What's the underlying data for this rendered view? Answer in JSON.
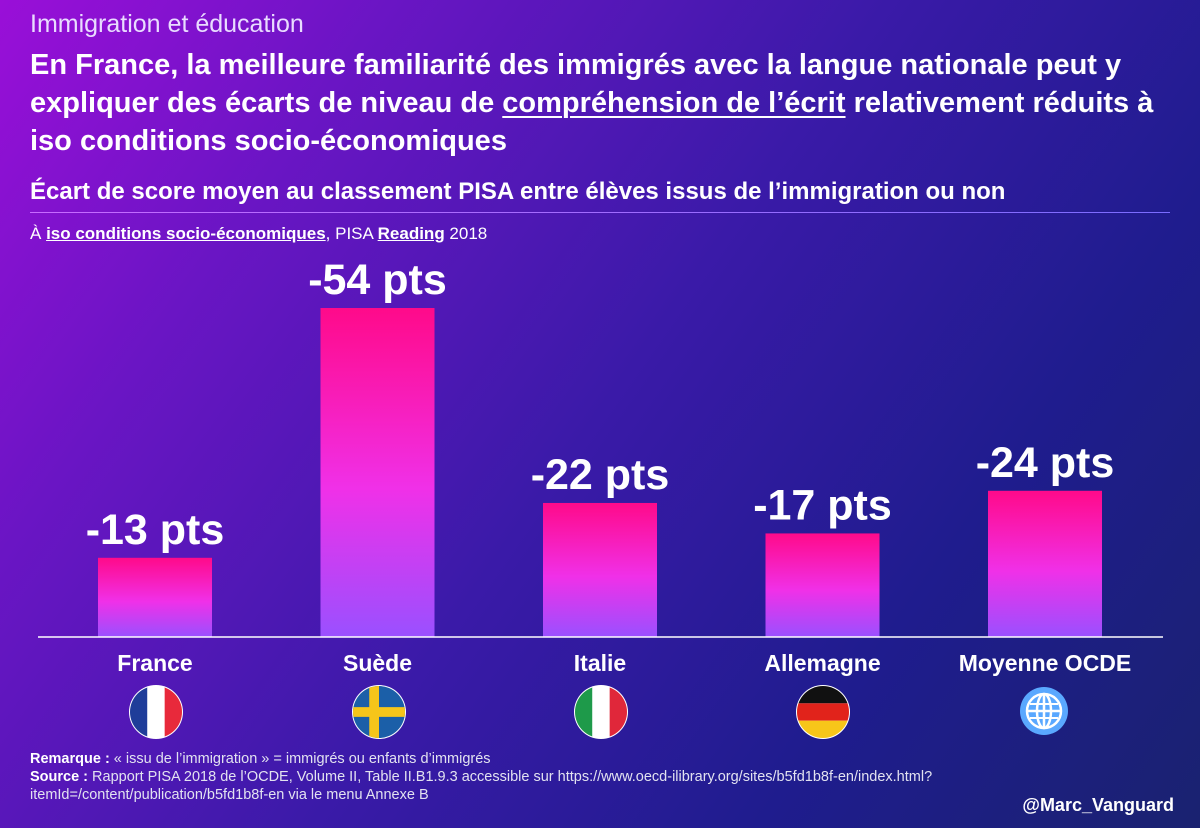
{
  "header": {
    "kicker": "Immigration et éducation",
    "headline_part1": "En France, la meilleure familiarité des immigrés avec la langue nationale peut y expliquer des écarts de niveau de ",
    "headline_underlined": "compréhension de l’écrit",
    "headline_part2": " relativement réduits à iso conditions socio-économiques",
    "subtitle": "Écart de score moyen au classement PISA entre élèves issus de l’immigration ou non",
    "note_prefix": "À ",
    "note_bold1": "iso conditions socio-économiques",
    "note_middle": ", PISA ",
    "note_bold2": "Reading",
    "note_suffix": " 2018"
  },
  "chart_data": {
    "type": "bar",
    "title": "Écart de score moyen au classement PISA entre élèves issus de l’immigration ou non",
    "subtitle": "À iso conditions socio-économiques, PISA Reading 2018",
    "categories": [
      "France",
      "Suède",
      "Italie",
      "Allemagne",
      "Moyenne OCDE"
    ],
    "values": [
      -13,
      -54,
      -22,
      -17,
      -24
    ],
    "data_labels": [
      "-13 pts",
      "-54 pts",
      "-22 pts",
      "-17 pts",
      "-24 pts"
    ],
    "icons": [
      "france-flag-icon",
      "sweden-flag-icon",
      "italy-flag-icon",
      "germany-flag-icon",
      "globe-icon"
    ],
    "xlabel": "",
    "ylabel": "",
    "ylim": [
      0,
      -60
    ],
    "grid": false,
    "colors": {
      "bar_top": "#ff0a8a",
      "bar_mid": "#f030e8",
      "bar_bottom": "#9a50ff"
    }
  },
  "footer": {
    "remark_label": "Remarque :",
    "remark_text": " « issu de l’immigration » = immigrés ou enfants d’immigrés",
    "source_label": "Source :",
    "source_text": " Rapport PISA 2018 de l’OCDE, Volume II, Table II.B1.9.3 accessible sur https://www.oecd-ilibrary.org/sites/b5fd1b8f-en/index.html?itemId=/content/publication/b5fd1b8f-en via le menu Annexe B",
    "handle": "@Marc_Vanguard"
  }
}
